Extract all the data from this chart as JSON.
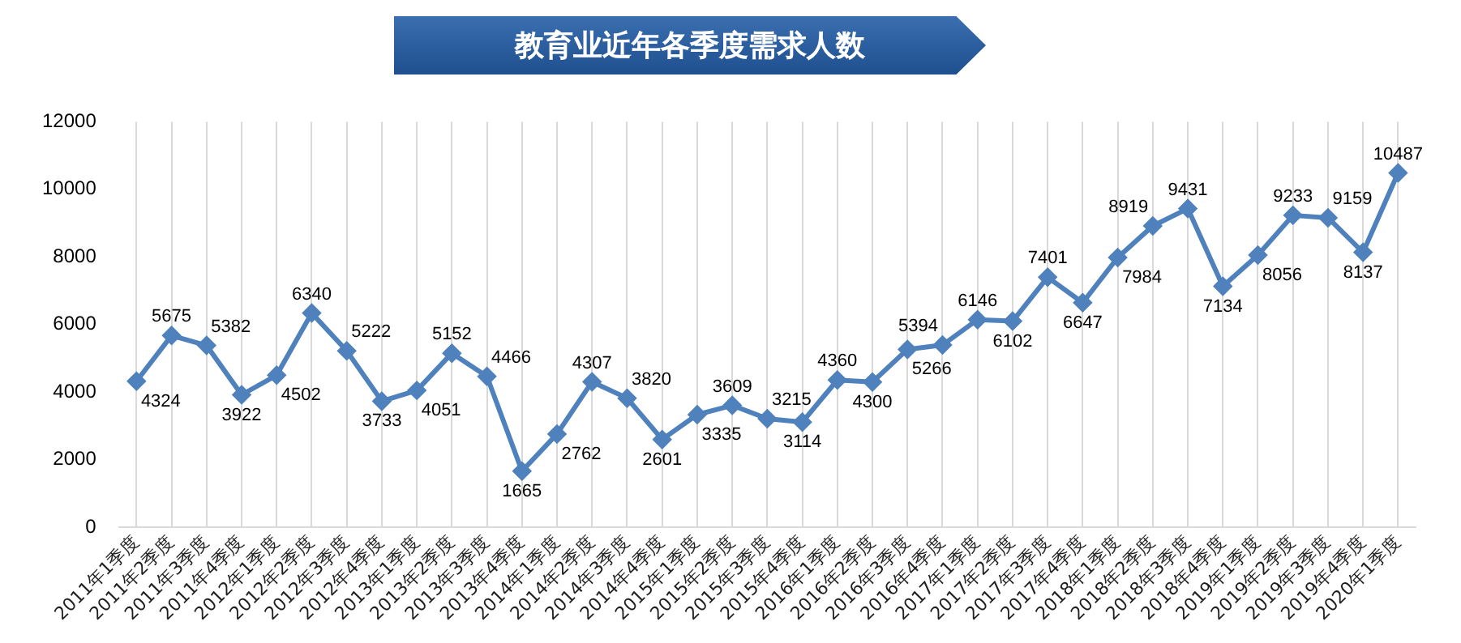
{
  "chart_data": {
    "type": "line",
    "title": "教育业近年各季度需求人数",
    "categories": [
      "2011年1季度",
      "2011年2季度",
      "2011年3季度",
      "2011年4季度",
      "2012年1季度",
      "2012年2季度",
      "2012年3季度",
      "2012年4季度",
      "2013年1季度",
      "2013年2季度",
      "2013年3季度",
      "2013年4季度",
      "2014年1季度",
      "2014年2季度",
      "2014年3季度",
      "2014年4季度",
      "2015年1季度",
      "2015年2季度",
      "2015年3季度",
      "2015年4季度",
      "2016年1季度",
      "2016年2季度",
      "2016年3季度",
      "2016年4季度",
      "2017年1季度",
      "2017年2季度",
      "2017年3季度",
      "2017年4季度",
      "2018年1季度",
      "2018年2季度",
      "2018年3季度",
      "2018年4季度",
      "2019年1季度",
      "2019年2季度",
      "2019年3季度",
      "2019年4季度",
      "2020年1季度"
    ],
    "series": [
      {
        "color": "#4f81bd",
        "values": [
          4324,
          5675,
          5382,
          3922,
          4502,
          6340,
          5222,
          3733,
          4051,
          5152,
          4466,
          1665,
          2762,
          4307,
          3820,
          2601,
          3335,
          3609,
          3215,
          3114,
          4360,
          4300,
          5266,
          5394,
          6146,
          6102,
          7401,
          6647,
          7984,
          8919,
          9431,
          7134,
          8056,
          9233,
          9159,
          8137,
          10487
        ]
      }
    ],
    "ylim": [
      0,
      12000
    ],
    "yticks": [
      0,
      2000,
      4000,
      6000,
      8000,
      10000,
      12000
    ],
    "grid": "x",
    "legend": false,
    "marker": "diamond",
    "line_style": "solid",
    "data_labels": true
  }
}
